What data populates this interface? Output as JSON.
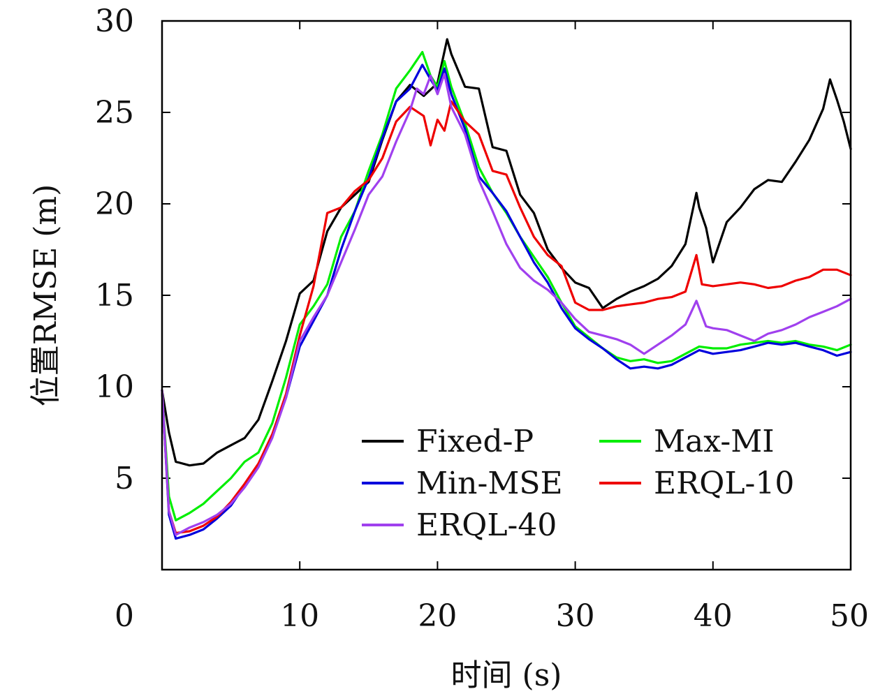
{
  "chart_data": {
    "type": "line",
    "xlabel": "时间 (s)",
    "ylabel": "位置RMSE (m)",
    "xlim": [
      0,
      50
    ],
    "ylim": [
      0,
      30
    ],
    "xticks": [
      0,
      10,
      20,
      30,
      40,
      50
    ],
    "yticks": [
      0,
      5,
      10,
      15,
      20,
      25,
      30
    ],
    "legend_position": "bottom-right",
    "series": [
      {
        "name": "Fixed-P",
        "color": "#000000",
        "x": [
          0,
          0.5,
          1,
          2,
          3,
          4,
          5,
          6,
          7,
          8,
          9,
          10,
          11,
          12,
          13,
          14,
          15,
          16,
          17,
          18,
          19,
          20,
          20.7,
          21,
          22,
          23,
          24,
          25,
          26,
          27,
          28,
          29,
          30,
          31,
          32,
          33,
          34,
          35,
          36,
          37,
          38,
          38.8,
          39,
          39.5,
          40,
          41,
          42,
          43,
          44,
          45,
          46,
          47,
          48,
          48.5,
          49,
          49.5,
          50
        ],
        "y": [
          9.8,
          7.5,
          5.9,
          5.7,
          5.8,
          6.4,
          6.8,
          7.2,
          8.2,
          10.3,
          12.5,
          15.1,
          15.8,
          18.5,
          19.8,
          20.5,
          21.2,
          23.5,
          25.6,
          26.5,
          25.9,
          26.6,
          29.0,
          28.2,
          26.4,
          26.3,
          23.1,
          22.9,
          20.5,
          19.5,
          17.5,
          16.5,
          15.7,
          15.4,
          14.3,
          14.8,
          15.2,
          15.5,
          15.9,
          16.6,
          17.8,
          20.6,
          19.8,
          18.7,
          16.8,
          19.0,
          19.8,
          20.8,
          21.3,
          21.2,
          22.3,
          23.5,
          25.2,
          26.8,
          25.7,
          24.5,
          23.0
        ]
      },
      {
        "name": "Max-MI",
        "color": "#00ee00",
        "x": [
          0,
          0.5,
          1,
          2,
          3,
          4,
          5,
          6,
          7,
          8,
          9,
          10,
          11,
          12,
          13,
          14,
          15,
          16,
          17,
          18,
          18.9,
          19.5,
          20,
          20.5,
          21,
          22,
          23,
          24,
          25,
          26,
          27,
          28,
          29,
          30,
          31,
          32,
          33,
          34,
          35,
          36,
          37,
          38,
          39,
          40,
          41,
          42,
          43,
          44,
          45,
          46,
          47,
          48,
          49,
          50
        ],
        "y": [
          9.8,
          4.0,
          2.7,
          3.1,
          3.6,
          4.3,
          5.0,
          5.9,
          6.4,
          8.0,
          10.5,
          13.4,
          14.4,
          15.6,
          18.2,
          19.6,
          21.8,
          23.8,
          26.3,
          27.3,
          28.3,
          27.0,
          26.4,
          27.8,
          26.4,
          24.4,
          22.0,
          20.6,
          19.5,
          18.2,
          17.1,
          16.0,
          14.6,
          13.3,
          12.7,
          12.1,
          11.6,
          11.4,
          11.5,
          11.3,
          11.4,
          11.8,
          12.2,
          12.1,
          12.1,
          12.3,
          12.4,
          12.5,
          12.4,
          12.5,
          12.3,
          12.2,
          12.0,
          12.3
        ]
      },
      {
        "name": "Min-MSE",
        "color": "#0000dd",
        "x": [
          0,
          0.5,
          1,
          2,
          3,
          4,
          5,
          6,
          7,
          8,
          9,
          10,
          11,
          12,
          13,
          14,
          15,
          16,
          17,
          18,
          18.9,
          19.5,
          20,
          20.5,
          21,
          22,
          23,
          24,
          25,
          26,
          27,
          28,
          29,
          30,
          31,
          32,
          33,
          34,
          35,
          36,
          37,
          38,
          39,
          40,
          41,
          42,
          43,
          44,
          45,
          46,
          47,
          48,
          49,
          50
        ],
        "y": [
          9.8,
          3.0,
          1.7,
          1.9,
          2.2,
          2.8,
          3.5,
          4.6,
          5.7,
          7.3,
          9.4,
          12.2,
          13.6,
          15.0,
          17.5,
          19.6,
          21.4,
          23.6,
          25.6,
          26.3,
          27.6,
          26.8,
          26.2,
          27.4,
          26.0,
          24.1,
          21.5,
          20.6,
          19.6,
          18.2,
          16.8,
          15.7,
          14.3,
          13.2,
          12.6,
          12.1,
          11.5,
          11.0,
          11.1,
          11.0,
          11.2,
          11.6,
          12.0,
          11.8,
          11.9,
          12.0,
          12.2,
          12.4,
          12.3,
          12.4,
          12.2,
          12.0,
          11.7,
          11.9
        ]
      },
      {
        "name": "ERQL-10",
        "color": "#ee0000",
        "x": [
          0,
          0.5,
          1,
          2,
          3,
          4,
          5,
          6,
          7,
          8,
          9,
          10,
          11,
          12,
          13,
          14,
          15,
          16,
          17,
          18,
          19,
          19.5,
          20,
          20.5,
          21,
          22,
          23,
          24,
          25,
          26,
          27,
          28,
          29,
          30,
          31,
          32,
          33,
          34,
          35,
          36,
          37,
          38,
          38.8,
          39.2,
          40,
          41,
          42,
          43,
          44,
          45,
          46,
          47,
          48,
          49,
          50
        ],
        "y": [
          9.8,
          3.2,
          2.0,
          2.1,
          2.4,
          2.9,
          3.7,
          4.7,
          5.8,
          7.4,
          9.6,
          12.8,
          15.5,
          19.5,
          19.8,
          20.7,
          21.3,
          22.5,
          24.5,
          25.3,
          24.8,
          23.2,
          24.6,
          24.0,
          25.6,
          24.5,
          23.8,
          21.8,
          21.6,
          19.8,
          18.2,
          17.2,
          16.6,
          14.6,
          14.2,
          14.2,
          14.4,
          14.5,
          14.6,
          14.8,
          14.9,
          15.2,
          17.2,
          15.6,
          15.5,
          15.6,
          15.7,
          15.6,
          15.4,
          15.5,
          15.8,
          16.0,
          16.4,
          16.4,
          16.1
        ]
      },
      {
        "name": "ERQL-40",
        "color": "#a040ee",
        "x": [
          0,
          0.5,
          1,
          2,
          3,
          4,
          5,
          6,
          7,
          8,
          9,
          10,
          11,
          12,
          13,
          14,
          15,
          16,
          17,
          18,
          18.5,
          19,
          19.5,
          20,
          20.5,
          21,
          22,
          23,
          24,
          25,
          26,
          27,
          28,
          29,
          30,
          31,
          32,
          33,
          34,
          35,
          36,
          37,
          38,
          38.8,
          39.5,
          40,
          41,
          42,
          43,
          44,
          45,
          46,
          47,
          48,
          49,
          50
        ],
        "y": [
          9.8,
          3.2,
          1.9,
          2.3,
          2.6,
          3.0,
          3.6,
          4.5,
          5.6,
          7.2,
          9.4,
          12.5,
          13.8,
          15.0,
          16.8,
          18.6,
          20.5,
          21.5,
          23.4,
          25.1,
          26.3,
          26.0,
          27.0,
          26.0,
          27.1,
          25.3,
          23.8,
          21.3,
          19.6,
          17.8,
          16.5,
          15.8,
          15.3,
          14.6,
          13.7,
          13.0,
          12.8,
          12.6,
          12.3,
          11.8,
          12.3,
          12.8,
          13.4,
          14.7,
          13.3,
          13.2,
          13.1,
          12.8,
          12.5,
          12.9,
          13.1,
          13.4,
          13.8,
          14.1,
          14.4,
          14.8
        ]
      }
    ]
  }
}
